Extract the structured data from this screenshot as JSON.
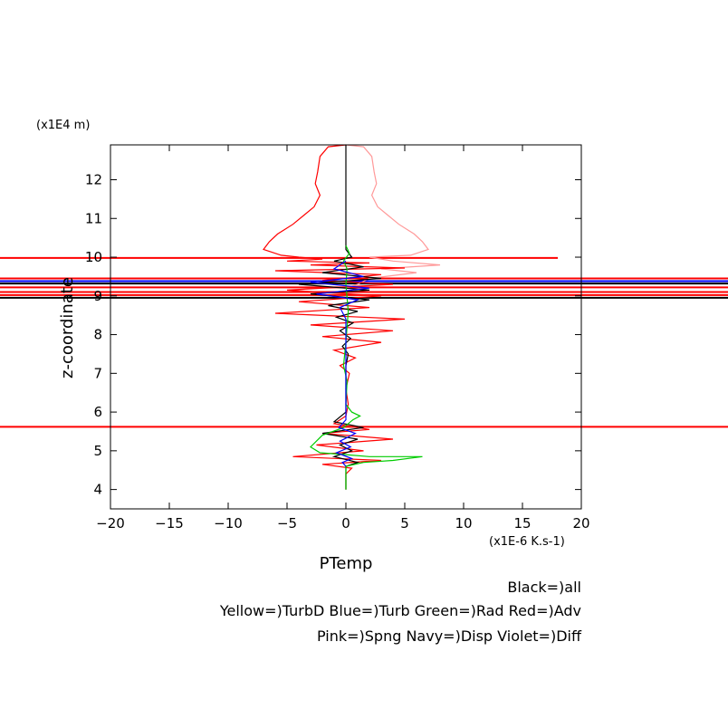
{
  "chart_data": {
    "type": "line",
    "title": "",
    "xlabel": "PTemp",
    "ylabel": "z-coordinate",
    "x_unit": "(x1E-6 K.s-1)",
    "y_unit": "(x1E4 m)",
    "xlim": [
      -20,
      20
    ],
    "ylim": [
      3.5,
      12.9
    ],
    "x_ticks": [
      -20,
      -15,
      -10,
      -5,
      0,
      5,
      10,
      15,
      20
    ],
    "y_ticks": [
      4,
      5,
      6,
      7,
      8,
      9,
      10,
      11,
      12
    ],
    "grid": false,
    "legend": [
      "Black=)all",
      "Yellow=)TurbD Blue=)Turb Green=)Rad Red=)Adv",
      "Pink=)Spng Navy=)Disp Violet=)Diff"
    ],
    "series": [
      {
        "color": "#ff9999",
        "points": [
          [
            0,
            12.9
          ],
          [
            1.5,
            12.85
          ],
          [
            2.2,
            12.6
          ],
          [
            2.4,
            12.2
          ],
          [
            2.6,
            11.9
          ],
          [
            2.2,
            11.6
          ],
          [
            2.7,
            11.3
          ],
          [
            3.5,
            11.1
          ],
          [
            4.5,
            10.85
          ],
          [
            5.8,
            10.6
          ],
          [
            6.5,
            10.4
          ],
          [
            7,
            10.2
          ],
          [
            5.5,
            10.05
          ],
          [
            2,
            10.0
          ],
          [
            4,
            9.9
          ],
          [
            8,
            9.8
          ],
          [
            3,
            9.7
          ],
          [
            6,
            9.6
          ],
          [
            2,
            9.45
          ],
          [
            1,
            9.3
          ],
          [
            0,
            9.2
          ]
        ]
      },
      {
        "color": "#ff0000",
        "points": [
          [
            0,
            12.9
          ],
          [
            -1.5,
            12.85
          ],
          [
            -2.2,
            12.6
          ],
          [
            -2.4,
            12.2
          ],
          [
            -2.6,
            11.9
          ],
          [
            -2.2,
            11.6
          ],
          [
            -2.7,
            11.3
          ],
          [
            -3.5,
            11.1
          ],
          [
            -4.5,
            10.85
          ],
          [
            -5.8,
            10.6
          ],
          [
            -6.5,
            10.4
          ],
          [
            -7,
            10.2
          ],
          [
            -5.5,
            10.05
          ],
          [
            -4,
            10.0
          ],
          [
            -2,
            9.95
          ],
          [
            -5,
            9.9
          ],
          [
            2,
            9.85
          ],
          [
            -3,
            9.8
          ],
          [
            5,
            9.72
          ],
          [
            -6,
            9.65
          ],
          [
            3,
            9.55
          ],
          [
            -2,
            9.4
          ],
          [
            4,
            9.3
          ],
          [
            -5,
            9.15
          ],
          [
            3,
            9.0
          ],
          [
            -4,
            8.85
          ],
          [
            2,
            8.7
          ],
          [
            -6,
            8.55
          ],
          [
            5,
            8.4
          ],
          [
            -3,
            8.25
          ],
          [
            4,
            8.1
          ],
          [
            -2,
            7.95
          ],
          [
            3,
            7.8
          ],
          [
            -1,
            7.6
          ],
          [
            0.8,
            7.4
          ],
          [
            -0.5,
            7.2
          ],
          [
            0.3,
            7.0
          ],
          [
            0,
            6.6
          ],
          [
            0.2,
            6.2
          ],
          [
            0,
            5.9
          ],
          [
            -1,
            5.7
          ],
          [
            2,
            5.55
          ],
          [
            -2,
            5.45
          ],
          [
            4,
            5.3
          ],
          [
            -2.5,
            5.15
          ],
          [
            1.5,
            5.0
          ],
          [
            -4.5,
            4.85
          ],
          [
            3,
            4.75
          ],
          [
            -2,
            4.65
          ],
          [
            0.5,
            4.55
          ],
          [
            0,
            4.4
          ],
          [
            0,
            4.0
          ]
        ]
      },
      {
        "color": "#000000",
        "points": [
          [
            0,
            12.9
          ],
          [
            0,
            10.2
          ],
          [
            0.5,
            10.0
          ],
          [
            -1,
            9.9
          ],
          [
            1.5,
            9.75
          ],
          [
            -2,
            9.6
          ],
          [
            3,
            9.45
          ],
          [
            -4,
            9.3
          ],
          [
            2,
            9.15
          ],
          [
            -3,
            9.05
          ],
          [
            2,
            8.9
          ],
          [
            -1.5,
            8.75
          ],
          [
            1,
            8.6
          ],
          [
            -0.8,
            8.45
          ],
          [
            0.6,
            8.3
          ],
          [
            -0.5,
            8.1
          ],
          [
            0.4,
            7.9
          ],
          [
            -0.3,
            7.7
          ],
          [
            0.2,
            7.5
          ],
          [
            0,
            7.2
          ],
          [
            0,
            6.0
          ],
          [
            -1,
            5.75
          ],
          [
            1.5,
            5.6
          ],
          [
            -2,
            5.45
          ],
          [
            1,
            5.3
          ],
          [
            -0.5,
            5.15
          ],
          [
            0.5,
            5.0
          ],
          [
            -1,
            4.85
          ],
          [
            1,
            4.7
          ],
          [
            0,
            4.6
          ],
          [
            0,
            4.0
          ]
        ]
      },
      {
        "color": "#00cc00",
        "points": [
          [
            0,
            10.3
          ],
          [
            0.3,
            10.1
          ],
          [
            -0.2,
            9.9
          ],
          [
            0.1,
            9.7
          ],
          [
            0,
            9.3
          ],
          [
            0.2,
            8.6
          ],
          [
            0,
            7.8
          ],
          [
            -0.2,
            7.2
          ],
          [
            0.1,
            6.8
          ],
          [
            0,
            6.2
          ],
          [
            0.5,
            6.0
          ],
          [
            1.2,
            5.9
          ],
          [
            0.6,
            5.8
          ],
          [
            -0.2,
            5.6
          ],
          [
            -2,
            5.4
          ],
          [
            -3,
            5.1
          ],
          [
            -2.2,
            4.95
          ],
          [
            0,
            4.9
          ],
          [
            2,
            4.85
          ],
          [
            6.5,
            4.85
          ],
          [
            4,
            4.75
          ],
          [
            1.5,
            4.7
          ],
          [
            0,
            4.6
          ],
          [
            0,
            4.0
          ]
        ]
      },
      {
        "color": "#0000ff",
        "points": [
          [
            0,
            9.9
          ],
          [
            -1,
            9.7
          ],
          [
            1.5,
            9.5
          ],
          [
            -3,
            9.35
          ],
          [
            2,
            9.2
          ],
          [
            -2.5,
            9.05
          ],
          [
            1,
            8.9
          ],
          [
            -0.5,
            8.7
          ],
          [
            0,
            8.4
          ],
          [
            0,
            5.8
          ],
          [
            -0.6,
            5.6
          ],
          [
            0.8,
            5.45
          ],
          [
            -0.5,
            5.25
          ],
          [
            0.4,
            5.1
          ],
          [
            -0.8,
            4.95
          ],
          [
            0.5,
            4.8
          ],
          [
            -0.3,
            4.7
          ],
          [
            0,
            4.6
          ]
        ]
      }
    ],
    "spikes": [
      {
        "y": 9.98,
        "x_from": -20,
        "x_to": 18,
        "color": "#ff0000"
      },
      {
        "y": 9.45,
        "x_from": -20,
        "x_to": 20,
        "color": "#ff0000"
      },
      {
        "y": 9.38,
        "x_from": -20,
        "x_to": 20,
        "color": "#0000ff"
      },
      {
        "y": 9.32,
        "x_from": -20,
        "x_to": 20,
        "color": "#000000"
      },
      {
        "y": 9.22,
        "x_from": -20,
        "x_to": 20,
        "color": "#ff0000"
      },
      {
        "y": 9.1,
        "x_from": -20,
        "x_to": 20,
        "color": "#ff0000"
      },
      {
        "y": 9.02,
        "x_from": -20,
        "x_to": 20,
        "color": "#ff0000"
      },
      {
        "y": 8.95,
        "x_from": -20,
        "x_to": 20,
        "color": "#000000"
      },
      {
        "y": 5.62,
        "x_from": -20,
        "x_to": 20,
        "color": "#ff0000"
      }
    ],
    "spike_series_color": "#ff0000"
  }
}
